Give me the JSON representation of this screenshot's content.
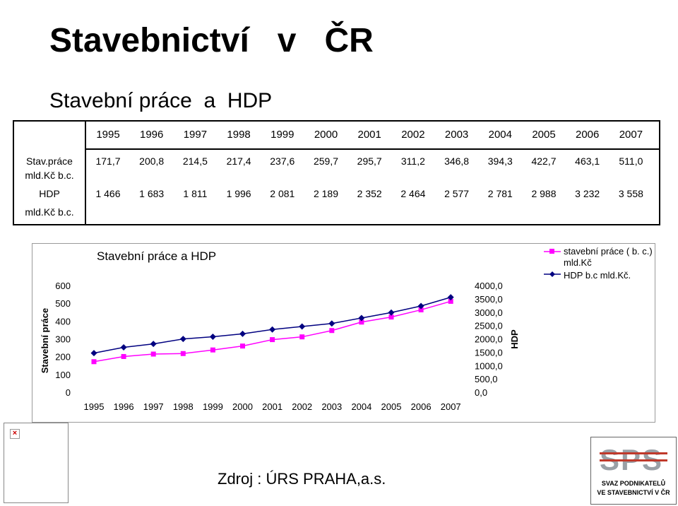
{
  "header": {
    "title": "Stavebnictví   v   ČR",
    "subtitle": "Stavební práce  a  HDP"
  },
  "table": {
    "years": [
      "1995",
      "1996",
      "1997",
      "1998",
      "1999",
      "2000",
      "2001",
      "2002",
      "2003",
      "2004",
      "2005",
      "2006",
      "2007"
    ],
    "rows": [
      {
        "label1": "Stav.práce",
        "label2": "mld.Kč b.c.",
        "values": [
          "171,7",
          "200,8",
          "214,5",
          "217,4",
          "237,6",
          "259,7",
          "295,7",
          "311,2",
          "346,8",
          "394,3",
          "422,7",
          "463,1",
          "511,0"
        ]
      },
      {
        "label1": "HDP",
        "label2": "mld.Kč b.c.",
        "values": [
          "1 466",
          "1 683",
          "1 811",
          "1 996",
          "2 081",
          "2 189",
          "2 352",
          "2 464",
          "2 577",
          "2 781",
          "2 988",
          "3 232",
          "3 558"
        ]
      }
    ]
  },
  "chart_data": {
    "type": "line",
    "title": "Stavební práce a HDP",
    "categories": [
      "1995",
      "1996",
      "1997",
      "1998",
      "1999",
      "2000",
      "2001",
      "2002",
      "2003",
      "2004",
      "2005",
      "2006",
      "2007"
    ],
    "series": [
      {
        "name": "stavební práce ( b. c.) mld.Kč",
        "axis": "left",
        "color": "#ff00ff",
        "marker": "square",
        "values": [
          171.7,
          200.8,
          214.5,
          217.4,
          237.6,
          259.7,
          295.7,
          311.2,
          346.8,
          394.3,
          422.7,
          463.1,
          511.0
        ]
      },
      {
        "name": "HDP b.c  mld.Kč.",
        "axis": "right",
        "color": "#000080",
        "marker": "diamond",
        "values": [
          1466,
          1683,
          1811,
          1996,
          2081,
          2189,
          2352,
          2464,
          2577,
          2781,
          2988,
          3232,
          3558
        ]
      }
    ],
    "ylabel": "Stavební práce",
    "y2label": "HDP",
    "ylim": [
      0,
      600
    ],
    "y2lim": [
      0,
      4000
    ],
    "yticks": [
      "0",
      "100",
      "200",
      "300",
      "400",
      "500",
      "600"
    ],
    "y2ticks": [
      "0,0",
      "500,0",
      "1000,0",
      "1500,0",
      "2000,0",
      "2500,0",
      "3000,0",
      "3500,0",
      "4000,0"
    ],
    "legend_position": "top-right",
    "grid": false
  },
  "footer": {
    "source": "Zdroj : ÚRS PRAHA,a.s.",
    "logo_mark": "SPS",
    "logo_line1": "SVAZ PODNIKATELŮ",
    "logo_line2": "VE STAVEBNICTVÍ V ČR"
  },
  "colors": {
    "series1": "#ff00ff",
    "series2": "#000080",
    "logo_red": "#c0392b",
    "logo_gray": "#9aa0a6"
  }
}
